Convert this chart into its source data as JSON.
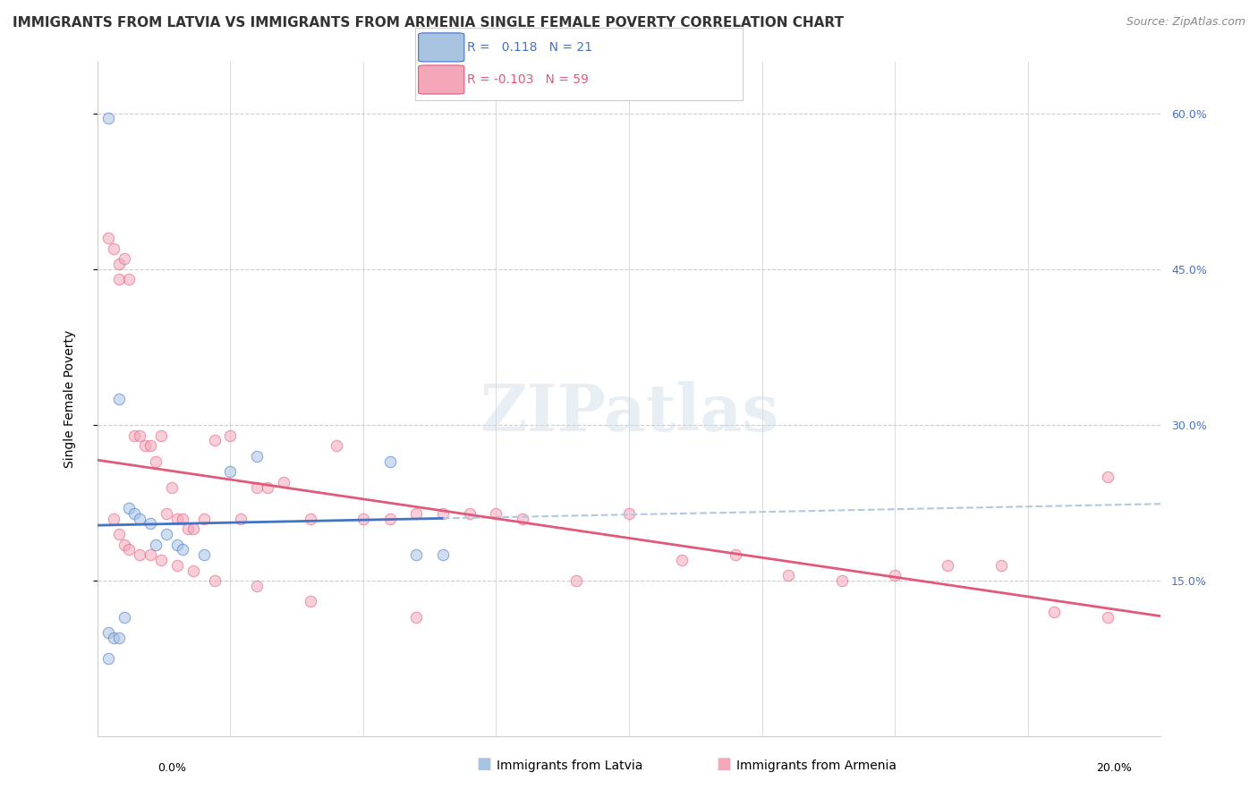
{
  "title": "IMMIGRANTS FROM LATVIA VS IMMIGRANTS FROM ARMENIA SINGLE FEMALE POVERTY CORRELATION CHART",
  "source": "Source: ZipAtlas.com",
  "ylabel": "Single Female Poverty",
  "x_min": 0.0,
  "x_max": 0.2,
  "y_min": 0.0,
  "y_max": 0.65,
  "y_ticks": [
    0.15,
    0.3,
    0.45,
    0.6
  ],
  "y_tick_labels": [
    "15.0%",
    "30.0%",
    "45.0%",
    "60.0%"
  ],
  "legend_label_latvia": "Immigrants from Latvia",
  "legend_label_armenia": "Immigrants from Armenia",
  "color_latvia": "#a8c4e0",
  "color_armenia": "#f4a7b9",
  "color_trend_latvia": "#4472c4",
  "color_trend_armenia": "#e05a7a",
  "color_trend_latvia_dash": "#b0c8e0",
  "background_color": "#ffffff",
  "grid_color": "#cccccc",
  "watermark": "ZIPatlas",
  "latvia_x": [
    0.002,
    0.004,
    0.006,
    0.007,
    0.008,
    0.01,
    0.011,
    0.013,
    0.015,
    0.016,
    0.02,
    0.025,
    0.03,
    0.055,
    0.06,
    0.065,
    0.002,
    0.003,
    0.002,
    0.004,
    0.005
  ],
  "latvia_y": [
    0.595,
    0.325,
    0.22,
    0.215,
    0.21,
    0.205,
    0.185,
    0.195,
    0.185,
    0.18,
    0.175,
    0.255,
    0.27,
    0.265,
    0.175,
    0.175,
    0.1,
    0.095,
    0.075,
    0.095,
    0.115
  ],
  "armenia_x": [
    0.002,
    0.003,
    0.004,
    0.004,
    0.005,
    0.006,
    0.007,
    0.008,
    0.009,
    0.01,
    0.011,
    0.012,
    0.013,
    0.014,
    0.015,
    0.016,
    0.017,
    0.018,
    0.02,
    0.022,
    0.025,
    0.027,
    0.03,
    0.032,
    0.035,
    0.04,
    0.045,
    0.05,
    0.055,
    0.06,
    0.065,
    0.07,
    0.075,
    0.08,
    0.09,
    0.1,
    0.11,
    0.12,
    0.13,
    0.14,
    0.15,
    0.16,
    0.17,
    0.18,
    0.19,
    0.003,
    0.004,
    0.005,
    0.006,
    0.008,
    0.01,
    0.012,
    0.015,
    0.018,
    0.022,
    0.03,
    0.04,
    0.06,
    0.19
  ],
  "armenia_y": [
    0.48,
    0.47,
    0.455,
    0.44,
    0.46,
    0.44,
    0.29,
    0.29,
    0.28,
    0.28,
    0.265,
    0.29,
    0.215,
    0.24,
    0.21,
    0.21,
    0.2,
    0.2,
    0.21,
    0.285,
    0.29,
    0.21,
    0.24,
    0.24,
    0.245,
    0.21,
    0.28,
    0.21,
    0.21,
    0.215,
    0.215,
    0.215,
    0.215,
    0.21,
    0.15,
    0.215,
    0.17,
    0.175,
    0.155,
    0.15,
    0.155,
    0.165,
    0.165,
    0.12,
    0.115,
    0.21,
    0.195,
    0.185,
    0.18,
    0.175,
    0.175,
    0.17,
    0.165,
    0.16,
    0.15,
    0.145,
    0.13,
    0.115,
    0.25
  ],
  "title_fontsize": 11,
  "source_fontsize": 9,
  "axis_label_fontsize": 10,
  "tick_fontsize": 9,
  "legend_fontsize": 10,
  "dot_size": 80,
  "dot_alpha": 0.55
}
